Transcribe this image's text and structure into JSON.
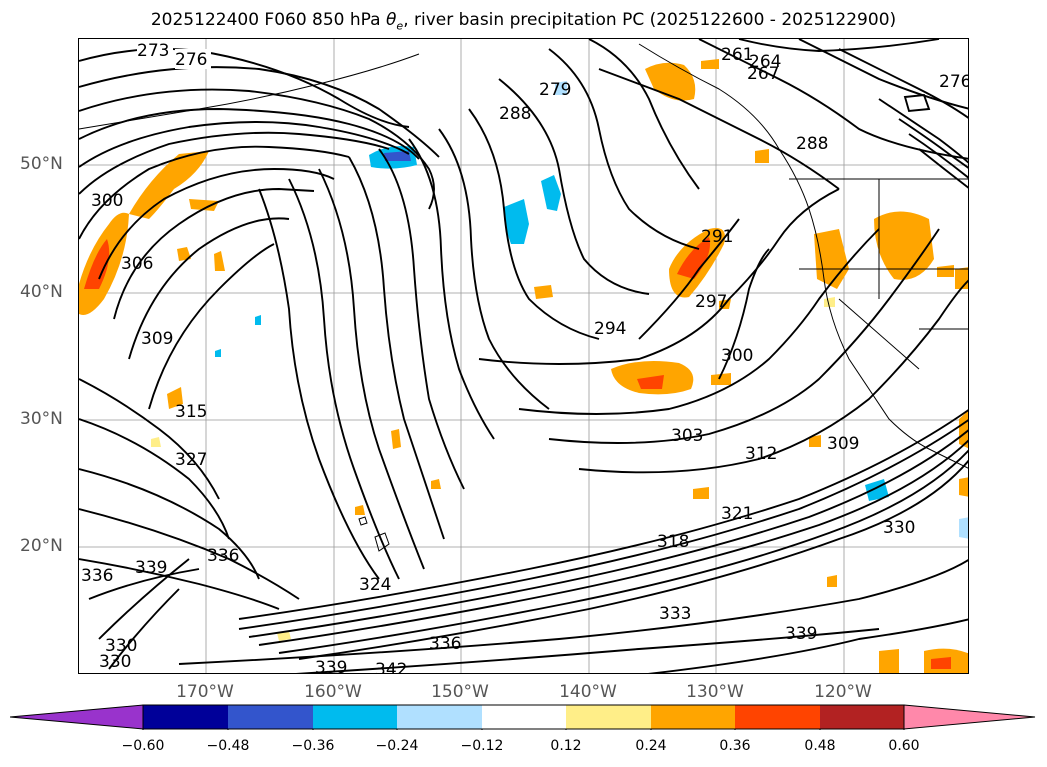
{
  "title_main": "2025122400 F060 850 hPa ",
  "title_sym": "θ",
  "title_sub": "e",
  "title_rest": ", river basin precipitation PC (2025122600 - 2025122900)",
  "lat_labels": [
    "50°N",
    "40°N",
    "30°N",
    "20°N"
  ],
  "lon_labels": [
    "170°W",
    "160°W",
    "150°W",
    "140°W",
    "130°W",
    "120°W"
  ],
  "contour_labels": [
    "273",
    "276",
    "261",
    "264",
    "267",
    "276",
    "279",
    "288",
    "288",
    "300",
    "306",
    "309",
    "291",
    "297",
    "294",
    "300",
    "315",
    "327",
    "303",
    "312",
    "309",
    "321",
    "318",
    "330",
    "336",
    "339",
    "336",
    "324",
    "336",
    "333",
    "339",
    "339",
    "342",
    "330",
    "330"
  ],
  "colorbar": {
    "ticks": [
      "−0.60",
      "−0.48",
      "−0.36",
      "−0.24",
      "−0.12",
      "0.12",
      "0.24",
      "0.36",
      "0.48",
      "0.60"
    ],
    "colors": [
      "#9933cc",
      "#000099",
      "#3355cc",
      "#00bbee",
      "#b0e0ff",
      "#ffffff",
      "#ffee88",
      "#ffa500",
      "#ff4400",
      "#b22222",
      "#ff88aa"
    ]
  }
}
